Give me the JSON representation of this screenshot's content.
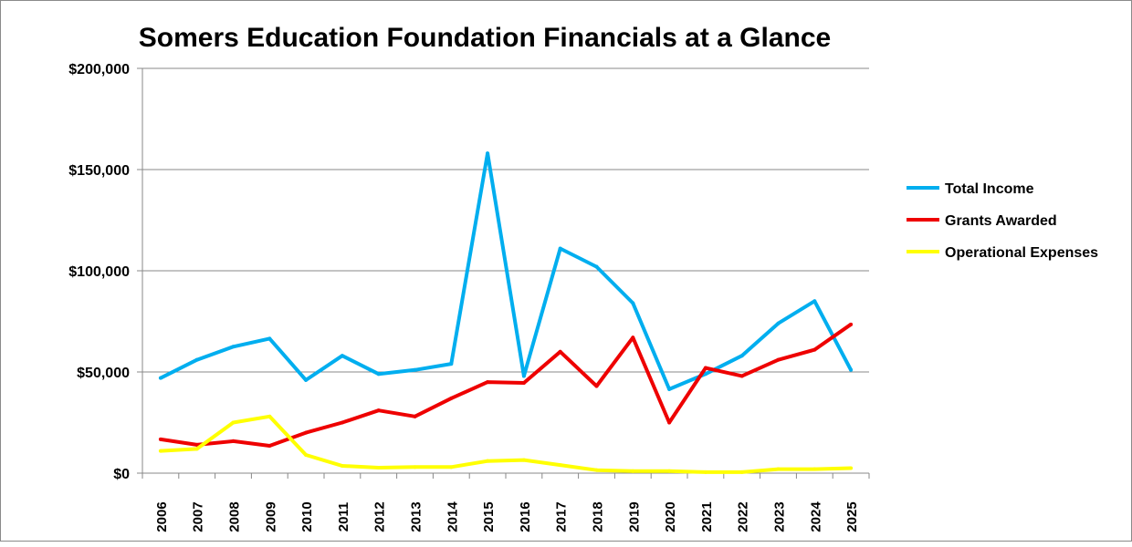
{
  "chart_data": {
    "type": "line",
    "title": "Somers Education Foundation Financials at a Glance",
    "xlabel": "",
    "ylabel": "",
    "ylim": [
      0,
      200000
    ],
    "yticks": [
      0,
      50000,
      100000,
      150000,
      200000
    ],
    "ytick_labels": [
      "$0",
      "$50,000",
      "$100,000",
      "$150,000",
      "$200,000"
    ],
    "grid": true,
    "legend_position": "right",
    "categories": [
      "2006",
      "2007",
      "2008",
      "2009",
      "2010",
      "2011",
      "2012",
      "2013",
      "2014",
      "2015",
      "2016",
      "2017",
      "2018",
      "2019",
      "2020",
      "2021",
      "2022",
      "2023",
      "2024",
      "2025"
    ],
    "series": [
      {
        "name": "Total Income",
        "color": "#00AEEF",
        "values": [
          47000,
          56000,
          62500,
          66500,
          46000,
          58000,
          49000,
          51000,
          54000,
          158000,
          48000,
          111000,
          102000,
          84000,
          41500,
          49000,
          58000,
          74000,
          85000,
          51000
        ]
      },
      {
        "name": "Grants Awarded",
        "color": "#EE0000",
        "values": [
          16700,
          14000,
          15800,
          13500,
          20000,
          25000,
          31000,
          28000,
          37000,
          45000,
          44600,
          60000,
          43000,
          67000,
          25000,
          52000,
          48000,
          56000,
          61000,
          73500
        ]
      },
      {
        "name": "Operational Expenses",
        "color": "#FFFF00",
        "values": [
          11000,
          12000,
          25000,
          28000,
          9000,
          3600,
          2700,
          3000,
          3000,
          6000,
          6500,
          4000,
          1500,
          1000,
          1000,
          500,
          500,
          2000,
          2000,
          2500
        ]
      }
    ]
  }
}
